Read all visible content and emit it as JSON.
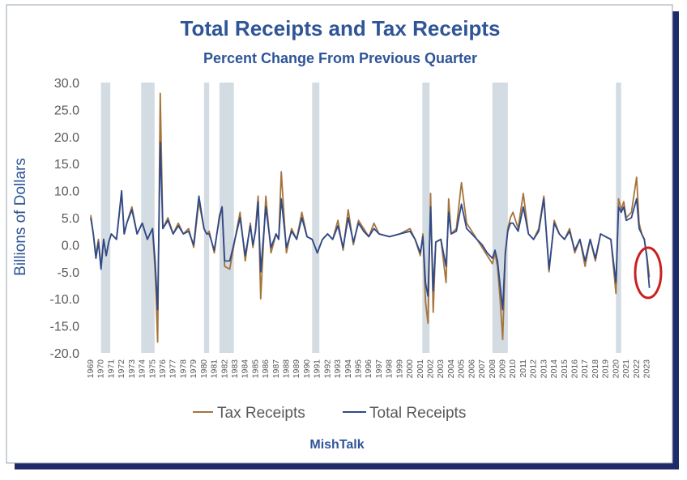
{
  "chart_data": {
    "type": "line",
    "title": "Total Receipts and Tax Receipts",
    "subtitle": "Percent Change From Previous Quarter",
    "ylabel": "Billions of Dollars",
    "xlabel": "",
    "ylim": [
      -20,
      30
    ],
    "yticks": [
      "30.0",
      "25.0",
      "20.0",
      "15.0",
      "10.0",
      "5.0",
      "0.0",
      "-5.0",
      "-10.0",
      "-15.0",
      "-20.0"
    ],
    "xlim": [
      1969,
      2023.75
    ],
    "xticks": [
      "1969",
      "1970",
      "1971",
      "1972",
      "1973",
      "1974",
      "1975",
      "1976",
      "1977",
      "1978",
      "1979",
      "1980",
      "1981",
      "1982",
      "1983",
      "1984",
      "1985",
      "1986",
      "1987",
      "1988",
      "1989",
      "1990",
      "1991",
      "1992",
      "1993",
      "1994",
      "1995",
      "1996",
      "1997",
      "1998",
      "1999",
      "2000",
      "2001",
      "2002",
      "2003",
      "2004",
      "2005",
      "2006",
      "2007",
      "2008",
      "2009",
      "2010",
      "2011",
      "2012",
      "2013",
      "2014",
      "2015",
      "2016",
      "2017",
      "2018",
      "2019",
      "2020",
      "2021",
      "2022",
      "2023"
    ],
    "recession_bands": [
      [
        1970.0,
        1970.9
      ],
      [
        1973.9,
        1975.2
      ],
      [
        1980.0,
        1980.5
      ],
      [
        1981.5,
        1982.9
      ],
      [
        1990.5,
        1991.2
      ],
      [
        2001.2,
        2001.9
      ],
      [
        2008.0,
        2009.5
      ],
      [
        2020.0,
        2020.5
      ]
    ],
    "legend": "bottom",
    "grid": false,
    "series": [
      {
        "name": "Tax Receipts",
        "color": "#a5743b",
        "x": [
          1969.0,
          1969.25,
          1969.5,
          1969.75,
          1970.0,
          1970.25,
          1970.5,
          1970.75,
          1971.0,
          1971.5,
          1972.0,
          1972.25,
          1972.5,
          1973.0,
          1973.5,
          1974.0,
          1974.5,
          1975.0,
          1975.25,
          1975.5,
          1975.75,
          1976.0,
          1976.5,
          1977.0,
          1977.5,
          1978.0,
          1978.5,
          1979.0,
          1979.5,
          1980.0,
          1980.25,
          1980.5,
          1981.0,
          1981.5,
          1981.75,
          1982.0,
          1982.5,
          1983.0,
          1983.5,
          1984.0,
          1984.5,
          1984.75,
          1985.0,
          1985.25,
          1985.5,
          1986.0,
          1986.5,
          1987.0,
          1987.25,
          1987.5,
          1988.0,
          1988.5,
          1989.0,
          1989.5,
          1990.0,
          1990.5,
          1991.0,
          1991.5,
          1992.0,
          1992.5,
          1993.0,
          1993.5,
          1994.0,
          1994.5,
          1995.0,
          1995.5,
          1996.0,
          1996.5,
          1997.0,
          1998.0,
          1999.0,
          2000.0,
          2000.5,
          2001.0,
          2001.25,
          2001.5,
          2001.75,
          2002.0,
          2002.25,
          2002.5,
          2003.0,
          2003.5,
          2003.75,
          2004.0,
          2004.5,
          2005.0,
          2005.5,
          2006.0,
          2006.5,
          2007.0,
          2007.5,
          2008.0,
          2008.25,
          2008.5,
          2008.75,
          2009.0,
          2009.25,
          2009.5,
          2009.75,
          2010.0,
          2010.5,
          2011.0,
          2011.5,
          2012.0,
          2012.5,
          2013.0,
          2013.5,
          2014.0,
          2014.5,
          2015.0,
          2015.5,
          2016.0,
          2016.5,
          2017.0,
          2017.5,
          2018.0,
          2018.5,
          2019.0,
          2019.5,
          2020.0,
          2020.25,
          2020.5,
          2020.75,
          2021.0,
          2021.5,
          2022.0,
          2022.25,
          2022.5,
          2022.75,
          2023.0,
          2023.25
        ],
        "y": [
          5.5,
          2.0,
          -2.0,
          1.0,
          -4.0,
          1.0,
          -2.0,
          0.5,
          2.0,
          1.0,
          9.5,
          2.0,
          4.0,
          7.0,
          2.0,
          4.0,
          1.0,
          3.0,
          -5.0,
          -18.0,
          28.0,
          3.0,
          5.0,
          2.0,
          4.0,
          2.0,
          3.0,
          -0.5,
          8.0,
          3.0,
          2.0,
          2.5,
          -1.5,
          5.5,
          7.0,
          -4.0,
          -4.5,
          1.0,
          6.0,
          -3.0,
          4.0,
          -0.5,
          3.0,
          9.0,
          -10.0,
          9.0,
          -1.5,
          2.0,
          1.0,
          13.5,
          -1.5,
          3.0,
          1.0,
          6.0,
          1.5,
          1.0,
          -1.5,
          1.0,
          2.0,
          1.0,
          4.5,
          -1.0,
          6.5,
          0.0,
          4.5,
          3.0,
          1.5,
          4.0,
          2.0,
          1.5,
          2.0,
          3.0,
          1.0,
          -2.0,
          2.0,
          -10.5,
          -14.5,
          9.5,
          -12.5,
          0.5,
          1.0,
          -7.0,
          8.5,
          2.0,
          3.0,
          11.5,
          4.0,
          2.5,
          1.0,
          -0.5,
          -2.0,
          -3.5,
          -1.5,
          -4.0,
          -10.0,
          -17.5,
          -2.0,
          3.0,
          5.0,
          6.0,
          3.0,
          9.5,
          2.0,
          1.0,
          3.0,
          9.0,
          -5.0,
          4.5,
          2.0,
          1.0,
          3.0,
          -1.5,
          1.0,
          -4.0,
          1.0,
          -3.0,
          2.0,
          1.5,
          1.0,
          -9.0,
          8.5,
          6.5,
          8.0,
          5.0,
          6.0,
          12.5,
          4.0,
          2.0,
          1.0,
          -2.0,
          -6.0
        ]
      },
      {
        "name": "Total Receipts",
        "color": "#2e4a8b",
        "x": [
          1969.0,
          1969.25,
          1969.5,
          1969.75,
          1970.0,
          1970.25,
          1970.5,
          1970.75,
          1971.0,
          1971.5,
          1972.0,
          1972.25,
          1972.5,
          1973.0,
          1973.5,
          1974.0,
          1974.5,
          1975.0,
          1975.25,
          1975.5,
          1975.75,
          1976.0,
          1976.5,
          1977.0,
          1977.5,
          1978.0,
          1978.5,
          1979.0,
          1979.5,
          1980.0,
          1980.25,
          1980.5,
          1981.0,
          1981.5,
          1981.75,
          1982.0,
          1982.5,
          1983.0,
          1983.5,
          1984.0,
          1984.5,
          1984.75,
          1985.0,
          1985.25,
          1985.5,
          1986.0,
          1986.5,
          1987.0,
          1987.25,
          1987.5,
          1988.0,
          1988.5,
          1989.0,
          1989.5,
          1990.0,
          1990.5,
          1991.0,
          1991.5,
          1992.0,
          1992.5,
          1993.0,
          1993.5,
          1994.0,
          1994.5,
          1995.0,
          1995.5,
          1996.0,
          1996.5,
          1997.0,
          1998.0,
          1999.0,
          2000.0,
          2000.5,
          2001.0,
          2001.25,
          2001.5,
          2001.75,
          2002.0,
          2002.25,
          2002.5,
          2003.0,
          2003.5,
          2003.75,
          2004.0,
          2004.5,
          2005.0,
          2005.5,
          2006.0,
          2006.5,
          2007.0,
          2007.5,
          2008.0,
          2008.25,
          2008.5,
          2008.75,
          2009.0,
          2009.25,
          2009.5,
          2009.75,
          2010.0,
          2010.5,
          2011.0,
          2011.5,
          2012.0,
          2012.5,
          2013.0,
          2013.5,
          2014.0,
          2014.5,
          2015.0,
          2015.5,
          2016.0,
          2016.5,
          2017.0,
          2017.5,
          2018.0,
          2018.5,
          2019.0,
          2019.5,
          2020.0,
          2020.25,
          2020.5,
          2020.75,
          2021.0,
          2021.5,
          2022.0,
          2022.25,
          2022.5,
          2022.75,
          2023.0,
          2023.25
        ],
        "y": [
          5.0,
          2.0,
          -2.5,
          0.5,
          -4.5,
          1.0,
          -2.0,
          0.5,
          2.0,
          1.0,
          10.0,
          2.0,
          4.0,
          6.5,
          2.0,
          4.0,
          1.0,
          3.0,
          -3.0,
          -12.0,
          19.0,
          3.0,
          4.5,
          2.0,
          3.5,
          2.0,
          2.5,
          0.0,
          9.0,
          3.0,
          2.0,
          2.0,
          -1.0,
          5.0,
          7.0,
          -3.0,
          -3.0,
          1.0,
          5.0,
          -2.0,
          3.5,
          0.0,
          2.5,
          8.0,
          -5.0,
          7.0,
          -0.5,
          2.0,
          1.0,
          8.5,
          -0.5,
          2.5,
          1.0,
          5.0,
          1.5,
          1.0,
          -1.5,
          1.0,
          2.0,
          1.0,
          3.5,
          -0.5,
          5.0,
          0.5,
          4.0,
          2.5,
          1.5,
          3.0,
          2.0,
          1.5,
          2.0,
          2.5,
          1.0,
          -1.5,
          1.5,
          -7.0,
          -9.5,
          7.0,
          -8.5,
          0.5,
          1.0,
          -4.0,
          6.0,
          2.0,
          2.5,
          7.5,
          3.0,
          2.0,
          1.0,
          0.0,
          -1.5,
          -2.5,
          -1.0,
          -3.0,
          -7.5,
          -12.0,
          -1.5,
          2.5,
          4.0,
          4.0,
          2.5,
          7.0,
          2.0,
          1.0,
          2.5,
          8.5,
          -4.5,
          4.0,
          2.0,
          1.0,
          2.5,
          -1.0,
          1.0,
          -3.0,
          1.0,
          -2.5,
          2.0,
          1.5,
          1.0,
          -7.0,
          7.0,
          6.0,
          7.0,
          4.5,
          5.0,
          8.5,
          3.0,
          2.0,
          1.0,
          -2.5,
          -8.0
        ]
      }
    ],
    "annotation": "red circle highlighting latest 2023 decline",
    "footer": "MishTalk"
  },
  "legend": {
    "tax_label": "Tax Receipts",
    "total_label": "Total Receipts"
  }
}
